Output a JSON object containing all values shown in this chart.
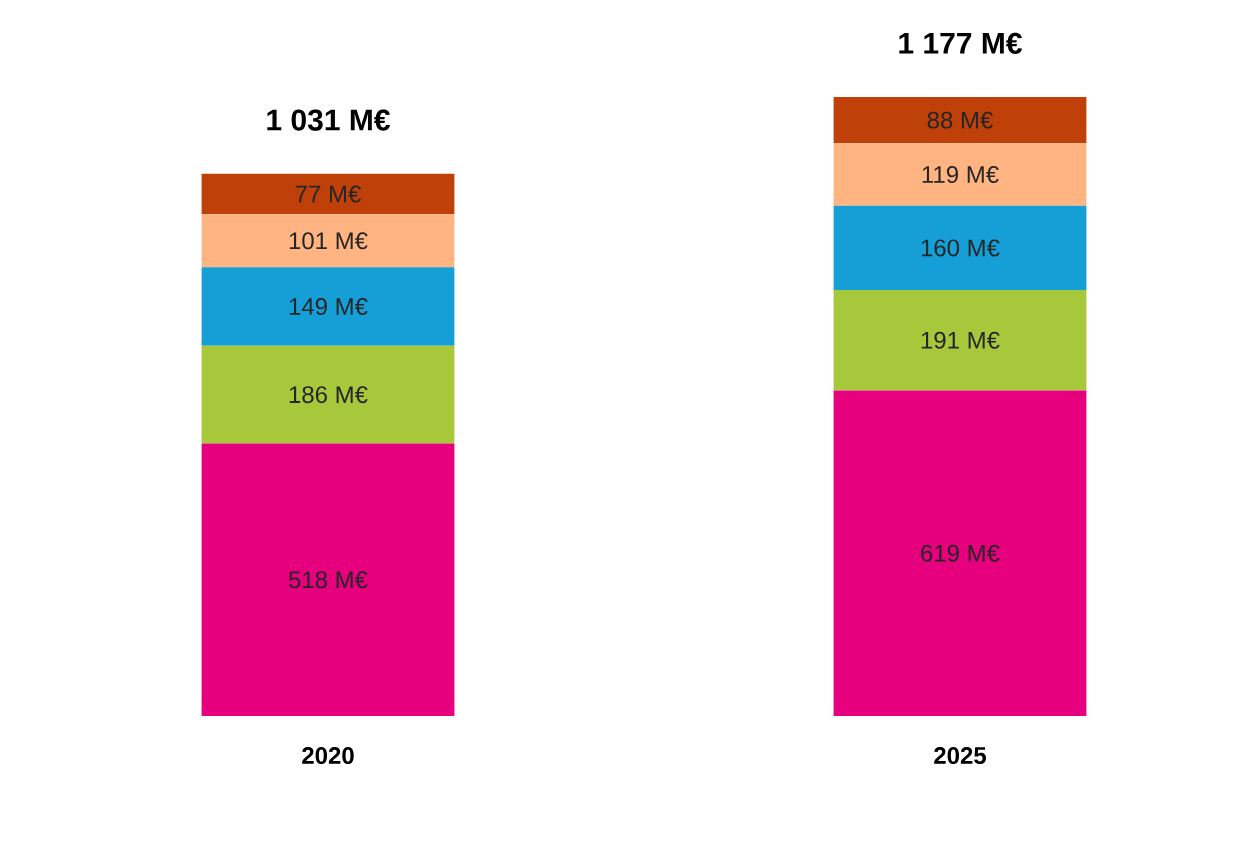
{
  "chart_data": {
    "type": "bar",
    "stacked": true,
    "categories": [
      "2020",
      "2025"
    ],
    "series": [
      {
        "color": "#e6007e",
        "values": [
          518,
          619
        ],
        "value_labels": [
          "518 M€",
          "619 M€"
        ]
      },
      {
        "color": "#a8c83c",
        "values": [
          186,
          191
        ],
        "value_labels": [
          "186 M€",
          "191 M€"
        ]
      },
      {
        "color": "#159fd6",
        "values": [
          149,
          160
        ],
        "value_labels": [
          "149 M€",
          "160 M€"
        ]
      },
      {
        "color": "#ffb482",
        "values": [
          101,
          119
        ],
        "value_labels": [
          "101 M€",
          "119 M€"
        ]
      },
      {
        "color": "#c0400a",
        "values": [
          77,
          88
        ],
        "value_labels": [
          "77 M€",
          "88 M€"
        ]
      }
    ],
    "totals": [
      "1 031 M€",
      "1 177 M€"
    ]
  }
}
